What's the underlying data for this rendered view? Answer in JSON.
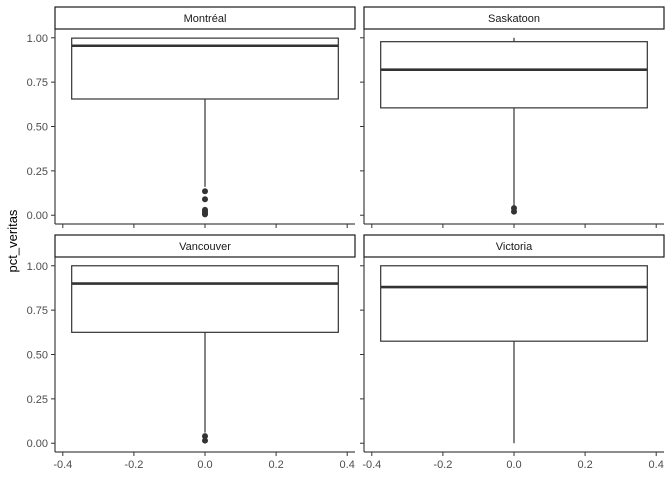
{
  "chart_data": {
    "type": "boxplot",
    "facet_layout": "2x2",
    "ylabel": "pct_veritas",
    "xlabel": "",
    "xlim": [
      -0.4,
      0.4
    ],
    "ylim": [
      0,
      1
    ],
    "x_ticks": [
      -0.4,
      -0.2,
      0.0,
      0.2,
      0.4
    ],
    "x_tick_labels": [
      "-0.4",
      "-0.2",
      "0.0",
      "0.2",
      "0.4"
    ],
    "y_ticks": [
      0,
      0.25,
      0.5,
      0.75,
      1.0
    ],
    "y_tick_labels": [
      "0.00",
      "0.25",
      "0.50",
      "0.75",
      "1.00"
    ],
    "grid": false,
    "box_x_range": [
      -0.375,
      0.375
    ],
    "panels": [
      {
        "name": "Montréal",
        "whisker_low": 0.16,
        "q1": 0.655,
        "median": 0.955,
        "q3": 0.998,
        "whisker_high": 1.0,
        "outliers": [
          0.135,
          0.09,
          0.03,
          0.02,
          0.01,
          0.005
        ]
      },
      {
        "name": "Saskatoon",
        "whisker_low": 0.05,
        "q1": 0.605,
        "median": 0.82,
        "q3": 0.978,
        "whisker_high": 1.0,
        "outliers": [
          0.04,
          0.02
        ]
      },
      {
        "name": "Vancouver",
        "whisker_low": 0.06,
        "q1": 0.625,
        "median": 0.9,
        "q3": 1.0,
        "whisker_high": 1.0,
        "outliers": [
          0.04,
          0.015
        ]
      },
      {
        "name": "Victoria",
        "whisker_low": 0.0,
        "q1": 0.575,
        "median": 0.88,
        "q3": 1.0,
        "whisker_high": 1.0,
        "outliers": []
      }
    ]
  }
}
